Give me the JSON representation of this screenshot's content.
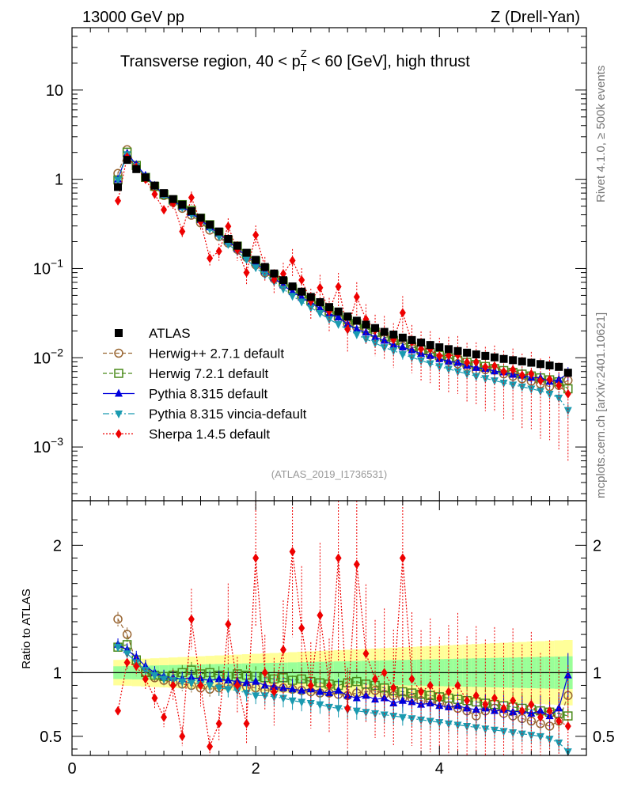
{
  "header": {
    "left": "13000 GeV pp",
    "right": "Z (Drell-Yan)",
    "title_prefix": "Transverse region, 40 < p",
    "title_sup": "Z",
    "title_sub": "T",
    "title_suffix": " < 60 [GeV], high thrust",
    "side_top": "Rivet 4.1.0, ≥ 500k events",
    "side_bottom": "mcplots.cern.ch [arXiv:2401.10621]",
    "watermark": "(ATLAS_2019_I1736531)"
  },
  "chart_data": {
    "type": "scatter",
    "xlim": [
      0,
      5.6
    ],
    "ylim_main": [
      0.00025,
      50
    ],
    "ylim_ratio": [
      0.35,
      2.35
    ],
    "y_scale_main": "log",
    "xlabel": "",
    "ylabel_ratio": "Ratio to ATLAS",
    "x_ticks": [
      "0",
      "2",
      "4"
    ],
    "y_ticks_main": [
      {
        "mant": "10",
        "exp": ""
      },
      {
        "mant": "1",
        "exp": ""
      },
      {
        "mant": "10",
        "exp": "−1"
      },
      {
        "mant": "10",
        "exp": "−2"
      },
      {
        "mant": "10",
        "exp": "−3"
      }
    ],
    "y_ticks_ratio": [
      "2",
      "1",
      "0.5"
    ],
    "legend_position": "lower-left",
    "x": [
      0.5,
      0.6,
      0.7,
      0.8,
      0.9,
      1.0,
      1.1,
      1.2,
      1.3,
      1.4,
      1.5,
      1.6,
      1.7,
      1.8,
      1.9,
      2.0,
      2.1,
      2.2,
      2.3,
      2.4,
      2.5,
      2.6,
      2.7,
      2.8,
      2.9,
      3.0,
      3.1,
      3.2,
      3.3,
      3.4,
      3.5,
      3.6,
      3.7,
      3.8,
      3.9,
      4.0,
      4.1,
      4.2,
      4.3,
      4.4,
      4.5,
      4.6,
      4.7,
      4.8,
      4.9,
      5.0,
      5.1,
      5.2,
      5.3,
      5.4
    ],
    "data": {
      "name": "ATLAS",
      "values": [
        0.82,
        1.65,
        1.3,
        1.05,
        0.85,
        0.7,
        0.6,
        0.52,
        0.44,
        0.37,
        0.31,
        0.26,
        0.215,
        0.18,
        0.15,
        0.125,
        0.104,
        0.088,
        0.074,
        0.063,
        0.055,
        0.048,
        0.042,
        0.037,
        0.033,
        0.029,
        0.026,
        0.0235,
        0.0215,
        0.0195,
        0.0182,
        0.0168,
        0.0158,
        0.0148,
        0.0139,
        0.0131,
        0.0125,
        0.0119,
        0.0114,
        0.0109,
        0.0105,
        0.0101,
        0.0097,
        0.0094,
        0.0091,
        0.0088,
        0.0085,
        0.0082,
        0.0079,
        0.0068
      ],
      "band_inner": 0.05,
      "band_outer": 0.1
    },
    "series": [
      {
        "name": "Herwig++ 2.7.1 default",
        "color": "#996633",
        "marker": "circle-open",
        "dash": "5,3",
        "ratio": [
          1.42,
          1.3,
          1.08,
          1.0,
          0.96,
          0.94,
          0.92,
          0.91,
          0.9,
          0.88,
          0.87,
          0.88,
          0.9,
          0.91,
          0.89,
          0.88,
          0.86,
          0.87,
          0.88,
          0.87,
          0.86,
          0.85,
          0.84,
          0.84,
          0.83,
          0.82,
          0.84,
          0.85,
          0.86,
          0.83,
          0.82,
          0.8,
          0.8,
          0.78,
          0.77,
          0.76,
          0.74,
          0.72,
          0.7,
          0.66,
          0.7,
          0.72,
          0.68,
          0.66,
          0.64,
          0.62,
          0.6,
          0.58,
          0.62,
          0.82
        ]
      },
      {
        "name": "Herwig 7.2.1 default",
        "color": "#4a8a1a",
        "marker": "square-open",
        "dash": "5,3",
        "ratio": [
          1.2,
          1.22,
          1.1,
          1.0,
          0.98,
          0.97,
          0.98,
          1.0,
          1.02,
          0.99,
          1.0,
          0.98,
          0.97,
          0.99,
          0.98,
          0.97,
          0.96,
          0.95,
          0.96,
          0.94,
          0.95,
          0.93,
          0.92,
          0.91,
          0.9,
          0.92,
          0.93,
          0.91,
          0.9,
          0.88,
          0.86,
          0.85,
          0.84,
          0.83,
          0.82,
          0.81,
          0.8,
          0.79,
          0.78,
          0.77,
          0.76,
          0.75,
          0.74,
          0.73,
          0.72,
          0.71,
          0.7,
          0.69,
          0.68,
          0.66
        ]
      },
      {
        "name": "Pythia 8.315 default",
        "color": "#0000dd",
        "marker": "triangle-up",
        "dash": "",
        "ratio": [
          1.22,
          1.18,
          1.12,
          1.05,
          1.0,
          0.97,
          0.96,
          0.95,
          0.96,
          0.95,
          0.94,
          0.95,
          0.94,
          0.93,
          0.92,
          0.93,
          0.9,
          0.89,
          0.88,
          0.87,
          0.86,
          0.87,
          0.85,
          0.84,
          0.86,
          0.82,
          0.8,
          0.82,
          0.79,
          0.8,
          0.76,
          0.78,
          0.77,
          0.75,
          0.76,
          0.74,
          0.73,
          0.74,
          0.72,
          0.71,
          0.72,
          0.7,
          0.71,
          0.69,
          0.7,
          0.68,
          0.7,
          0.66,
          0.72,
          0.98
        ]
      },
      {
        "name": "Pythia 8.315 vincia-default",
        "color": "#1a9ab0",
        "marker": "triangle-down",
        "dash": "8,3,2,3",
        "ratio": [
          1.2,
          1.15,
          1.08,
          1.02,
          0.98,
          0.95,
          0.94,
          0.93,
          0.92,
          0.91,
          0.9,
          0.88,
          0.87,
          0.86,
          0.84,
          0.82,
          0.82,
          0.81,
          0.8,
          0.78,
          0.77,
          0.76,
          0.75,
          0.73,
          0.72,
          0.71,
          0.7,
          0.69,
          0.68,
          0.67,
          0.66,
          0.65,
          0.64,
          0.63,
          0.62,
          0.61,
          0.6,
          0.59,
          0.58,
          0.57,
          0.56,
          0.55,
          0.54,
          0.53,
          0.52,
          0.51,
          0.5,
          0.48,
          0.45,
          0.38
        ]
      },
      {
        "name": "Sherpa 1.4.5 default",
        "color": "#ee0000",
        "marker": "diamond",
        "dash": "2,2",
        "ratio": [
          0.7,
          1.08,
          1.05,
          0.95,
          0.8,
          0.65,
          0.9,
          0.5,
          1.42,
          0.9,
          0.42,
          0.6,
          1.38,
          0.9,
          0.6,
          1.9,
          1.0,
          0.85,
          1.18,
          1.95,
          1.35,
          0.9,
          1.45,
          0.9,
          1.9,
          0.72,
          1.85,
          1.15,
          0.95,
          1.0,
          0.88,
          1.9,
          0.95,
          0.85,
          0.9,
          0.8,
          0.85,
          0.9,
          0.78,
          0.82,
          0.75,
          0.8,
          0.72,
          0.78,
          0.7,
          0.75,
          0.65,
          0.7,
          0.62,
          0.58
        ]
      }
    ]
  }
}
